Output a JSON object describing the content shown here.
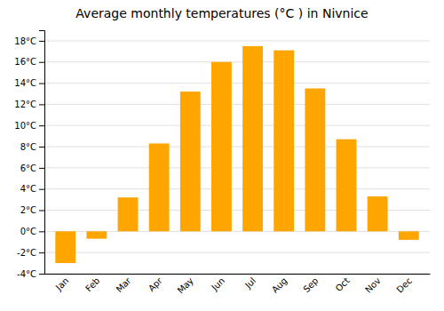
{
  "chart_data": {
    "type": "bar",
    "title": "Average monthly temperatures (°C ) in Nivnice",
    "categories": [
      "Jan",
      "Feb",
      "Mar",
      "Apr",
      "May",
      "Jun",
      "Jul",
      "Aug",
      "Sep",
      "Oct",
      "Nov",
      "Dec"
    ],
    "values": [
      -3.0,
      -0.7,
      3.2,
      8.3,
      13.2,
      16.0,
      17.5,
      17.1,
      13.5,
      8.7,
      3.3,
      -0.8
    ],
    "color": "#FFA500",
    "ylim": [
      -4,
      19
    ],
    "yticks": [
      {
        "value": -4,
        "label": "-4°C"
      },
      {
        "value": -2,
        "label": "-2°C"
      },
      {
        "value": 0,
        "label": "0°C"
      },
      {
        "value": 2,
        "label": "2°C"
      },
      {
        "value": 4,
        "label": "4°C"
      },
      {
        "value": 6,
        "label": "6°C"
      },
      {
        "value": 8,
        "label": "8°C"
      },
      {
        "value": 10,
        "label": "10°C"
      },
      {
        "value": 12,
        "label": "12°C"
      },
      {
        "value": 14,
        "label": "14°C"
      },
      {
        "value": 16,
        "label": "16°C"
      },
      {
        "value": 18,
        "label": "18°C"
      }
    ],
    "grid": true
  }
}
